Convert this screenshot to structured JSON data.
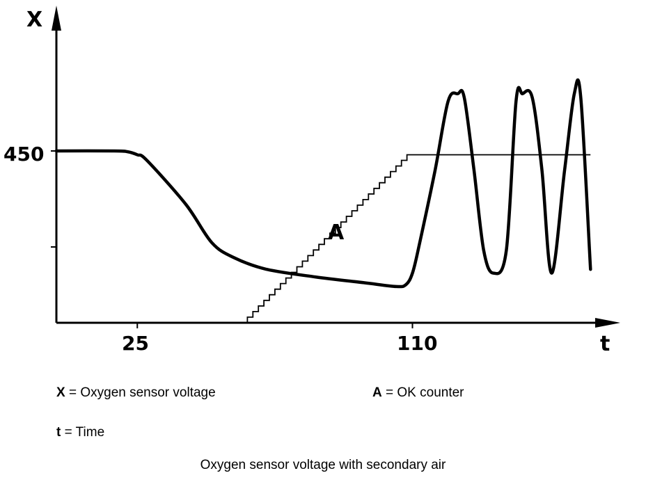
{
  "chart_data": {
    "type": "line",
    "title": "Oxygen sensor voltage with secondary air",
    "xlabel": "t",
    "ylabel": "X",
    "x_ticks": [
      25,
      110
    ],
    "y_ticks": [
      450
    ],
    "series": [
      {
        "name": "X",
        "style": "thick",
        "x": [
          0,
          18,
          22,
          25,
          28,
          40,
          48,
          55,
          65,
          80,
          95,
          105,
          108,
          110,
          112,
          117,
          121,
          124,
          126,
          129,
          132,
          135,
          139,
          142,
          144,
          147,
          150,
          153,
          157,
          160,
          162,
          165
        ],
        "y": [
          450,
          450,
          448,
          440,
          425,
          310,
          210,
          170,
          140,
          120,
          105,
          95,
          100,
          130,
          200,
          400,
          580,
          600,
          590,
          400,
          190,
          130,
          190,
          580,
          600,
          590,
          400,
          130,
          400,
          600,
          590,
          140
        ]
      },
      {
        "name": "A",
        "style": "staircase",
        "x": [
          59,
          110,
          165
        ],
        "y": [
          0,
          440,
          440
        ]
      }
    ],
    "grid": false
  },
  "axes": {
    "y_letter": "X",
    "x_letter": "t",
    "y_tick_label": "450",
    "x_tick_labels": [
      "25",
      "110"
    ],
    "curve_label": "A"
  },
  "legend": {
    "x_key": "X",
    "x_desc": "= Oxygen sensor voltage",
    "a_key": "A",
    "a_desc": "= OK counter",
    "t_key": "t",
    "t_desc": " = Time"
  },
  "caption": "Oxygen sensor voltage with secondary air"
}
